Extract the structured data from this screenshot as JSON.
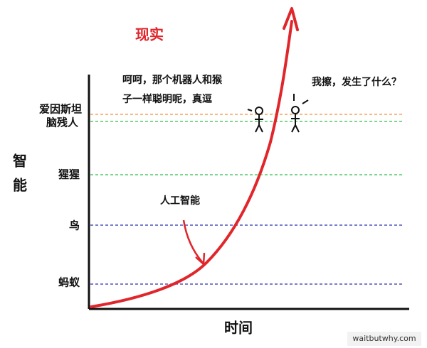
{
  "title": "现实",
  "axes": {
    "y_label": "智能",
    "x_label": "时间"
  },
  "levels": [
    {
      "label": "爱因斯坦"
    },
    {
      "label": "脑残人"
    },
    {
      "label": "猩猩"
    },
    {
      "label": "鸟"
    },
    {
      "label": "蚂蚁"
    }
  ],
  "annotation": "人工智能",
  "speech": {
    "left": [
      "呵呵，那个机器人和猴",
      "子一样聪明呢，真逗"
    ],
    "right": "我擦，发生了什么？"
  },
  "watermark": "waitbutwhy.com"
}
